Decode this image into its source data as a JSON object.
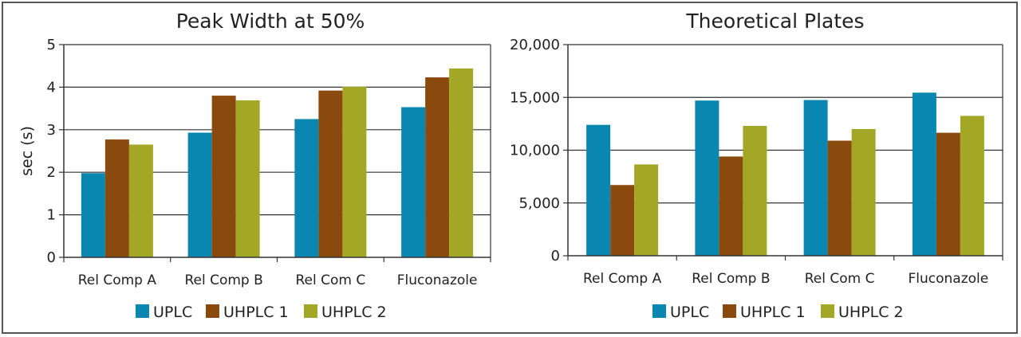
{
  "colors": {
    "UPLC": "#0a87b0",
    "UHPLC 1": "#8a4a0e",
    "UHPLC 2": "#a2a826",
    "grid": "#222222"
  },
  "chart_data": [
    {
      "type": "bar",
      "title": "Peak Width at 50%",
      "ylabel": "sec (s)",
      "xlabel": "",
      "categories": [
        "Rel Comp A",
        "Rel Comp B",
        "Rel Com C",
        "Fluconazole"
      ],
      "series": [
        {
          "name": "UPLC",
          "values": [
            1.98,
            2.93,
            3.25,
            3.53
          ]
        },
        {
          "name": "UHPLC 1",
          "values": [
            2.77,
            3.8,
            3.92,
            4.23
          ]
        },
        {
          "name": "UHPLC 2",
          "values": [
            2.65,
            3.69,
            4.01,
            4.44
          ]
        }
      ],
      "ylim": [
        0,
        5
      ],
      "yticks": [
        "0",
        "1",
        "2",
        "3",
        "4",
        "5"
      ],
      "grid": true,
      "legend": "bottom"
    },
    {
      "type": "bar",
      "title": "Theoretical Plates",
      "ylabel": "",
      "xlabel": "",
      "categories": [
        "Rel Comp A",
        "Rel Comp B",
        "Rel Com C",
        "Fluconazole"
      ],
      "series": [
        {
          "name": "UPLC",
          "values": [
            12400,
            14700,
            14750,
            15450
          ]
        },
        {
          "name": "UHPLC 1",
          "values": [
            6700,
            9400,
            10900,
            11650
          ]
        },
        {
          "name": "UHPLC 2",
          "values": [
            8650,
            12300,
            12000,
            13250
          ]
        }
      ],
      "ylim": [
        0,
        20000
      ],
      "yticks": [
        "0",
        "5,000",
        "10,000",
        "15,000",
        "20,000"
      ],
      "grid": true,
      "legend": "bottom"
    }
  ]
}
